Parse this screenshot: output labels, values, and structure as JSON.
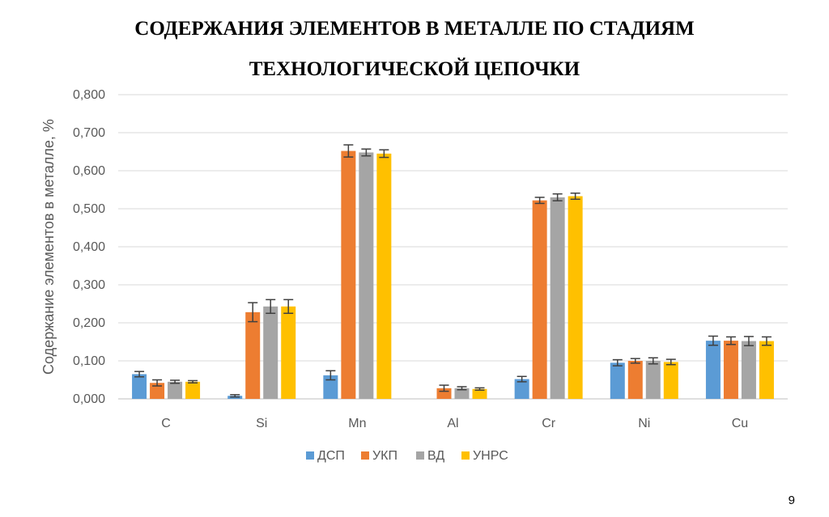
{
  "slide": {
    "title_line_1": "СОДЕРЖАНИЯ ЭЛЕМЕНТОВ В МЕТАЛЛЕ ПО СТАДИЯМ",
    "title_line_2": "ТЕХНОЛОГИЧЕСКОЙ ЦЕПОЧКИ",
    "page_number": "9"
  },
  "chart_data": {
    "type": "bar",
    "title": "СОДЕРЖАНИЯ ЭЛЕМЕНТОВ В МЕТАЛЛЕ ПО СТАДИЯМ ТЕХНОЛОГИЧЕСКОЙ ЦЕПОЧКИ",
    "xlabel": "",
    "ylabel": "Содержание элементов в металле, %",
    "ylim": [
      0,
      0.8
    ],
    "yticks": [
      "0,000",
      "0,100",
      "0,200",
      "0,300",
      "0,400",
      "0,500",
      "0,600",
      "0,700",
      "0,800"
    ],
    "grid": true,
    "legend_position": "bottom",
    "categories": [
      "C",
      "Si",
      "Mn",
      "Al",
      "Cr",
      "Ni",
      "Cu"
    ],
    "series": [
      {
        "name": "ДСП",
        "color": "#5B9BD5",
        "values": [
          0.065,
          0.008,
          0.062,
          0.0,
          0.052,
          0.095,
          0.153
        ],
        "errors": [
          0.007,
          0.003,
          0.012,
          0.0,
          0.007,
          0.008,
          0.012
        ]
      },
      {
        "name": "УКП",
        "color": "#ED7D31",
        "values": [
          0.042,
          0.228,
          0.652,
          0.028,
          0.522,
          0.1,
          0.153
        ],
        "errors": [
          0.008,
          0.025,
          0.016,
          0.008,
          0.008,
          0.006,
          0.01
        ]
      },
      {
        "name": "ВД",
        "color": "#A5A5A5",
        "values": [
          0.045,
          0.243,
          0.648,
          0.028,
          0.53,
          0.1,
          0.152
        ],
        "errors": [
          0.004,
          0.018,
          0.009,
          0.004,
          0.009,
          0.008,
          0.012
        ]
      },
      {
        "name": "УНРС",
        "color": "#FFC000",
        "values": [
          0.045,
          0.243,
          0.645,
          0.026,
          0.533,
          0.097,
          0.152
        ],
        "errors": [
          0.003,
          0.018,
          0.01,
          0.003,
          0.008,
          0.007,
          0.011
        ]
      }
    ],
    "colors": {
      "grid": "#D9D9D9",
      "axis": "#BFBFBF",
      "error_bar": "#404040",
      "text": "#595959"
    }
  }
}
